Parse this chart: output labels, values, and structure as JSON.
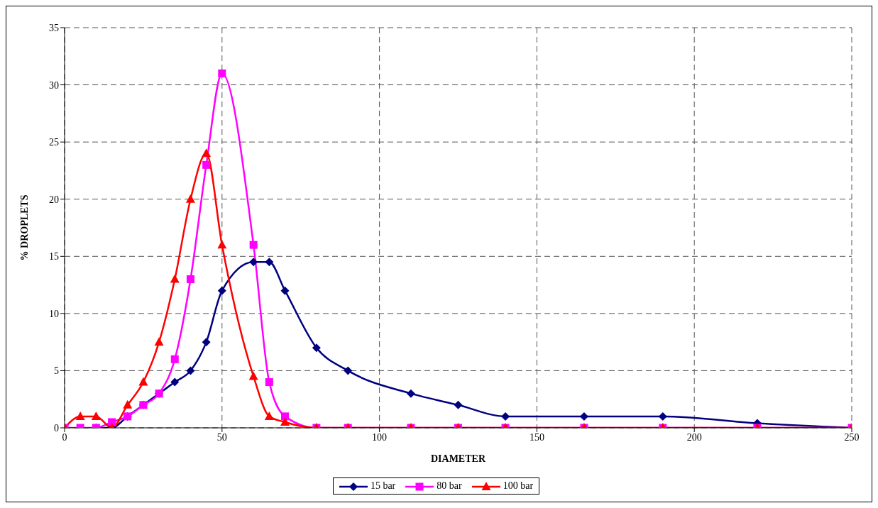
{
  "chart_data": {
    "type": "line",
    "xlabel": "DIAMETER",
    "ylabel": "% DROPLETS",
    "x": [
      0,
      5,
      10,
      15,
      20,
      25,
      30,
      35,
      40,
      45,
      50,
      60,
      65,
      70,
      80,
      90,
      110,
      125,
      140,
      165,
      190,
      220,
      250
    ],
    "xlim": [
      0,
      250
    ],
    "xticks": [
      0,
      50,
      100,
      150,
      200,
      250
    ],
    "ylim": [
      0,
      35
    ],
    "yticks": [
      0,
      5,
      10,
      15,
      20,
      25,
      30,
      35
    ],
    "grid": true,
    "legend": "bottom",
    "line_style": "solid",
    "series": [
      {
        "name": "15 bar",
        "color": "#000080",
        "marker": "diamond",
        "values": [
          null,
          null,
          0,
          0,
          1,
          2,
          3,
          4,
          5,
          7.5,
          12,
          14.5,
          14.5,
          12,
          7,
          5,
          3,
          2,
          1,
          1,
          1,
          0.4,
          0
        ]
      },
      {
        "name": "80 bar",
        "color": "#ff00ff",
        "marker": "square",
        "values": [
          0,
          0,
          0,
          0.5,
          1,
          2,
          3,
          6,
          13,
          23,
          31,
          16,
          4,
          1,
          0,
          0,
          0,
          0,
          0,
          0,
          0,
          0,
          0
        ]
      },
      {
        "name": "100 bar",
        "color": "#ff0000",
        "marker": "triangle",
        "values": [
          0,
          1,
          1,
          0,
          2,
          4,
          7.5,
          13,
          20,
          24,
          16,
          4.5,
          1,
          0.5,
          0,
          0,
          0,
          0,
          0,
          0,
          0,
          0,
          0
        ]
      }
    ]
  }
}
